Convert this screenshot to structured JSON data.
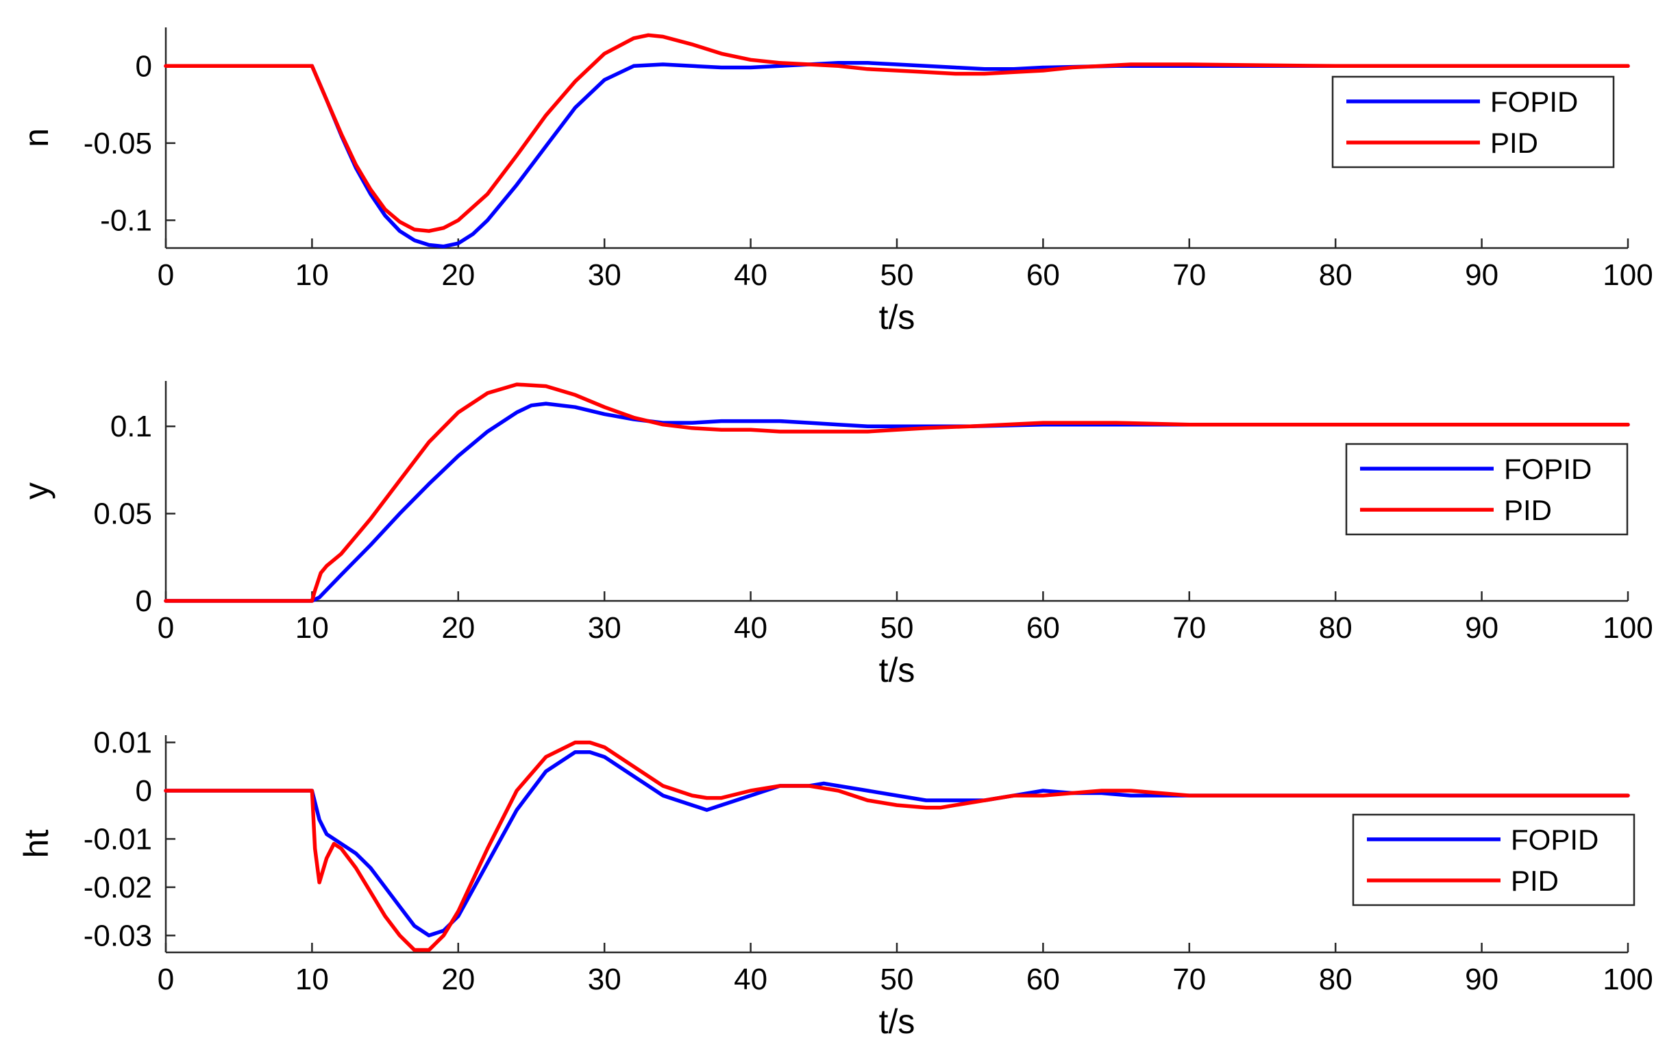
{
  "chart_data": [
    {
      "type": "line",
      "ylabel": "n",
      "xlabel": "t/s",
      "xlim": [
        0,
        100
      ],
      "ylim": [
        -0.118,
        0.025
      ],
      "xticks": [
        0,
        10,
        20,
        30,
        40,
        50,
        60,
        70,
        80,
        90,
        100
      ],
      "yticks": [
        0,
        -0.05,
        -0.1
      ],
      "ytick_labels": [
        "0",
        "-0.05",
        "-0.1"
      ],
      "legend_position": "top-right",
      "series": [
        {
          "name": "FOPID",
          "color": "#0000ff",
          "x": [
            0,
            10,
            11,
            12,
            13,
            14,
            15,
            16,
            17,
            18,
            19,
            20,
            21,
            22,
            24,
            26,
            28,
            30,
            32,
            34,
            36,
            38,
            40,
            42,
            44,
            46,
            48,
            50,
            52,
            54,
            56,
            58,
            60,
            65,
            70,
            75,
            80,
            90,
            100
          ],
          "y": [
            0,
            0,
            -0.022,
            -0.045,
            -0.066,
            -0.083,
            -0.097,
            -0.107,
            -0.113,
            -0.116,
            -0.117,
            -0.115,
            -0.109,
            -0.1,
            -0.077,
            -0.052,
            -0.027,
            -0.009,
            0,
            0.001,
            0,
            -0.001,
            -0.001,
            0,
            0.001,
            0.002,
            0.002,
            0.001,
            0,
            -0.001,
            -0.002,
            -0.002,
            -0.001,
            0,
            0,
            0,
            0,
            0,
            0
          ]
        },
        {
          "name": "PID",
          "color": "#ff0000",
          "x": [
            0,
            10,
            11,
            12,
            13,
            14,
            15,
            16,
            17,
            18,
            19,
            20,
            22,
            24,
            26,
            28,
            30,
            32,
            33,
            34,
            36,
            38,
            40,
            42,
            44,
            46,
            48,
            50,
            52,
            54,
            56,
            58,
            60,
            62,
            64,
            66,
            70,
            80,
            90,
            100
          ],
          "y": [
            0,
            0,
            -0.022,
            -0.044,
            -0.064,
            -0.08,
            -0.093,
            -0.101,
            -0.106,
            -0.107,
            -0.105,
            -0.1,
            -0.083,
            -0.058,
            -0.032,
            -0.01,
            0.008,
            0.018,
            0.02,
            0.019,
            0.014,
            0.008,
            0.004,
            0.002,
            0.001,
            0,
            -0.002,
            -0.003,
            -0.004,
            -0.005,
            -0.005,
            -0.004,
            -0.003,
            -0.001,
            0,
            0.001,
            0.001,
            0,
            0,
            0
          ]
        }
      ]
    },
    {
      "type": "line",
      "ylabel": "y",
      "xlabel": "t/s",
      "xlim": [
        0,
        100
      ],
      "ylim": [
        0,
        0.126
      ],
      "xticks": [
        0,
        10,
        20,
        30,
        40,
        50,
        60,
        70,
        80,
        90,
        100
      ],
      "yticks": [
        0,
        0.05,
        0.1
      ],
      "ytick_labels": [
        "0",
        "0.05",
        "0.1"
      ],
      "legend_position": "middle-right",
      "series": [
        {
          "name": "FOPID",
          "color": "#0000ff",
          "x": [
            0,
            10,
            10.5,
            12,
            14,
            16,
            18,
            20,
            22,
            24,
            25,
            26,
            28,
            30,
            32,
            34,
            36,
            38,
            40,
            42,
            44,
            46,
            48,
            50,
            55,
            60,
            70,
            80,
            90,
            100
          ],
          "y": [
            0,
            0,
            0.002,
            0.015,
            0.032,
            0.05,
            0.067,
            0.083,
            0.097,
            0.108,
            0.112,
            0.113,
            0.111,
            0.107,
            0.104,
            0.102,
            0.102,
            0.103,
            0.103,
            0.103,
            0.102,
            0.101,
            0.1,
            0.1,
            0.1,
            0.101,
            0.101,
            0.101,
            0.101,
            0.101
          ]
        },
        {
          "name": "PID",
          "color": "#ff0000",
          "x": [
            0,
            10,
            10.2,
            10.6,
            11,
            12,
            14,
            16,
            18,
            20,
            22,
            24,
            26,
            28,
            30,
            32,
            34,
            36,
            38,
            40,
            42,
            44,
            46,
            48,
            50,
            52,
            55,
            60,
            65,
            70,
            80,
            90,
            100
          ],
          "y": [
            0,
            0,
            0.006,
            0.016,
            0.02,
            0.027,
            0.047,
            0.069,
            0.091,
            0.108,
            0.119,
            0.124,
            0.123,
            0.118,
            0.111,
            0.105,
            0.101,
            0.099,
            0.098,
            0.098,
            0.097,
            0.097,
            0.097,
            0.097,
            0.098,
            0.099,
            0.1,
            0.102,
            0.102,
            0.101,
            0.101,
            0.101,
            0.101
          ]
        }
      ]
    },
    {
      "type": "line",
      "ylabel": "ht",
      "xlabel": "t/s",
      "xlim": [
        0,
        100
      ],
      "ylim": [
        -0.0335,
        0.0115
      ],
      "xticks": [
        0,
        10,
        20,
        30,
        40,
        50,
        60,
        70,
        80,
        90,
        100
      ],
      "yticks": [
        0.01,
        0,
        -0.01,
        -0.02,
        -0.03
      ],
      "ytick_labels": [
        "0.01",
        "0",
        "-0.01",
        "-0.02",
        "-0.03"
      ],
      "legend_position": "bottom-right",
      "series": [
        {
          "name": "FOPID",
          "color": "#0000ff",
          "x": [
            0,
            10,
            10.5,
            11,
            12,
            13,
            14,
            15,
            16,
            17,
            18,
            19,
            20,
            22,
            24,
            26,
            28,
            29,
            30,
            32,
            34,
            36,
            37,
            38,
            40,
            42,
            44,
            45,
            46,
            48,
            50,
            52,
            54,
            56,
            58,
            60,
            62,
            64,
            66,
            68,
            70,
            75,
            80,
            90,
            100
          ],
          "y": [
            0,
            0,
            -0.006,
            -0.009,
            -0.011,
            -0.013,
            -0.016,
            -0.02,
            -0.024,
            -0.028,
            -0.03,
            -0.029,
            -0.026,
            -0.015,
            -0.004,
            0.004,
            0.008,
            0.008,
            0.007,
            0.003,
            -0.001,
            -0.003,
            -0.004,
            -0.003,
            -0.001,
            0.001,
            0.001,
            0.0015,
            0.001,
            0,
            -0.001,
            -0.002,
            -0.002,
            -0.002,
            -0.001,
            0,
            -0.0005,
            -0.0005,
            -0.001,
            -0.001,
            -0.001,
            -0.001,
            -0.001,
            -0.001,
            -0.001
          ]
        },
        {
          "name": "PID",
          "color": "#ff0000",
          "x": [
            0,
            10,
            10.2,
            10.5,
            11,
            11.5,
            12,
            13,
            14,
            15,
            16,
            17,
            17.5,
            18,
            19,
            20,
            22,
            24,
            26,
            28,
            29,
            30,
            32,
            34,
            36,
            37,
            38,
            40,
            42,
            44,
            46,
            48,
            50,
            52,
            53,
            54,
            56,
            58,
            60,
            62,
            64,
            66,
            70,
            80,
            90,
            100
          ],
          "y": [
            0,
            0,
            -0.012,
            -0.019,
            -0.014,
            -0.011,
            -0.012,
            -0.016,
            -0.021,
            -0.026,
            -0.03,
            -0.033,
            -0.033,
            -0.033,
            -0.03,
            -0.025,
            -0.012,
            0,
            0.007,
            0.01,
            0.01,
            0.009,
            0.005,
            0.001,
            -0.001,
            -0.0015,
            -0.0015,
            0,
            0.001,
            0.001,
            0,
            -0.002,
            -0.003,
            -0.0035,
            -0.0035,
            -0.003,
            -0.002,
            -0.001,
            -0.001,
            -0.0005,
            0,
            0,
            -0.001,
            -0.001,
            -0.001,
            -0.001
          ]
        }
      ]
    }
  ]
}
